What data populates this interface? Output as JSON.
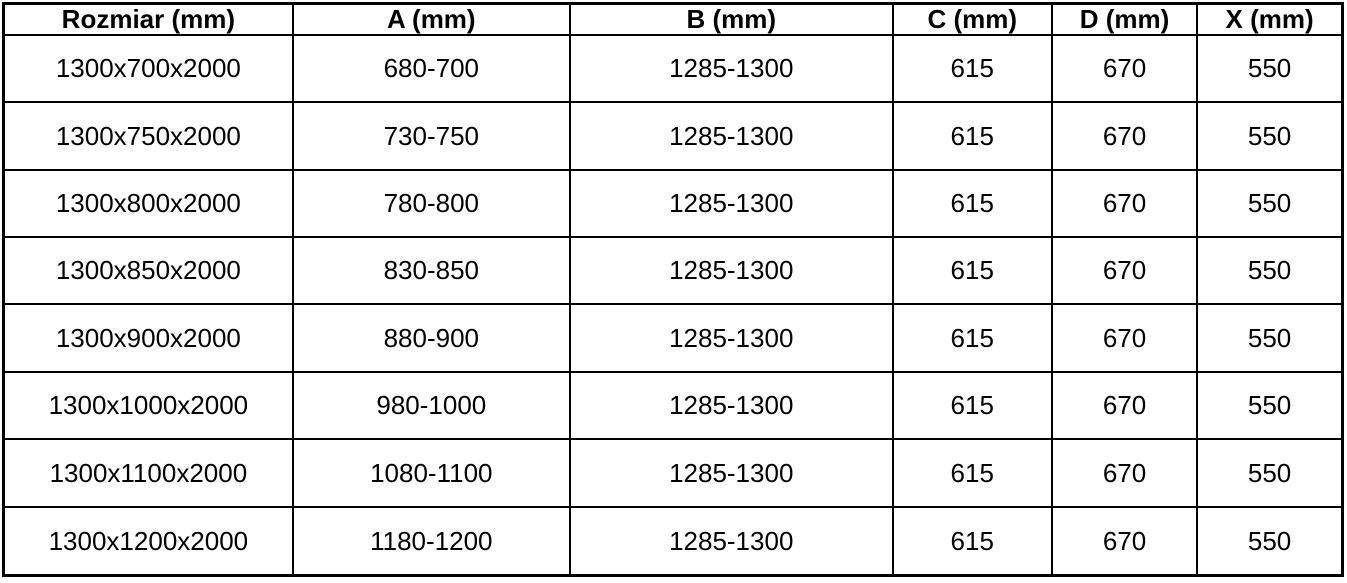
{
  "table": {
    "headers": [
      {
        "key": "rozmiar",
        "label": "Rozmiar (mm)"
      },
      {
        "key": "a",
        "label": "A (mm)"
      },
      {
        "key": "b",
        "label": "B (mm)"
      },
      {
        "key": "c",
        "label": "C (mm)"
      },
      {
        "key": "d",
        "label": "D (mm)"
      },
      {
        "key": "x",
        "label": "X (mm)"
      }
    ],
    "rows": [
      {
        "rozmiar": "1300x700x2000",
        "a": "680-700",
        "b": "1285-1300",
        "c": "615",
        "d": "670",
        "x": "550"
      },
      {
        "rozmiar": "1300x750x2000",
        "a": "730-750",
        "b": "1285-1300",
        "c": "615",
        "d": "670",
        "x": "550"
      },
      {
        "rozmiar": "1300x800x2000",
        "a": "780-800",
        "b": "1285-1300",
        "c": "615",
        "d": "670",
        "x": "550"
      },
      {
        "rozmiar": "1300x850x2000",
        "a": "830-850",
        "b": "1285-1300",
        "c": "615",
        "d": "670",
        "x": "550"
      },
      {
        "rozmiar": "1300x900x2000",
        "a": "880-900",
        "b": "1285-1300",
        "c": "615",
        "d": "670",
        "x": "550"
      },
      {
        "rozmiar": "1300x1000x2000",
        "a": "980-1000",
        "b": "1285-1300",
        "c": "615",
        "d": "670",
        "x": "550"
      },
      {
        "rozmiar": "1300x1100x2000",
        "a": "1080-1100",
        "b": "1285-1300",
        "c": "615",
        "d": "670",
        "x": "550"
      },
      {
        "rozmiar": "1300x1200x2000",
        "a": "1180-1200",
        "b": "1285-1300",
        "c": "615",
        "d": "670",
        "x": "550"
      }
    ],
    "colors": {
      "border": "#000000",
      "text": "#000000",
      "background": "#ffffff"
    }
  }
}
